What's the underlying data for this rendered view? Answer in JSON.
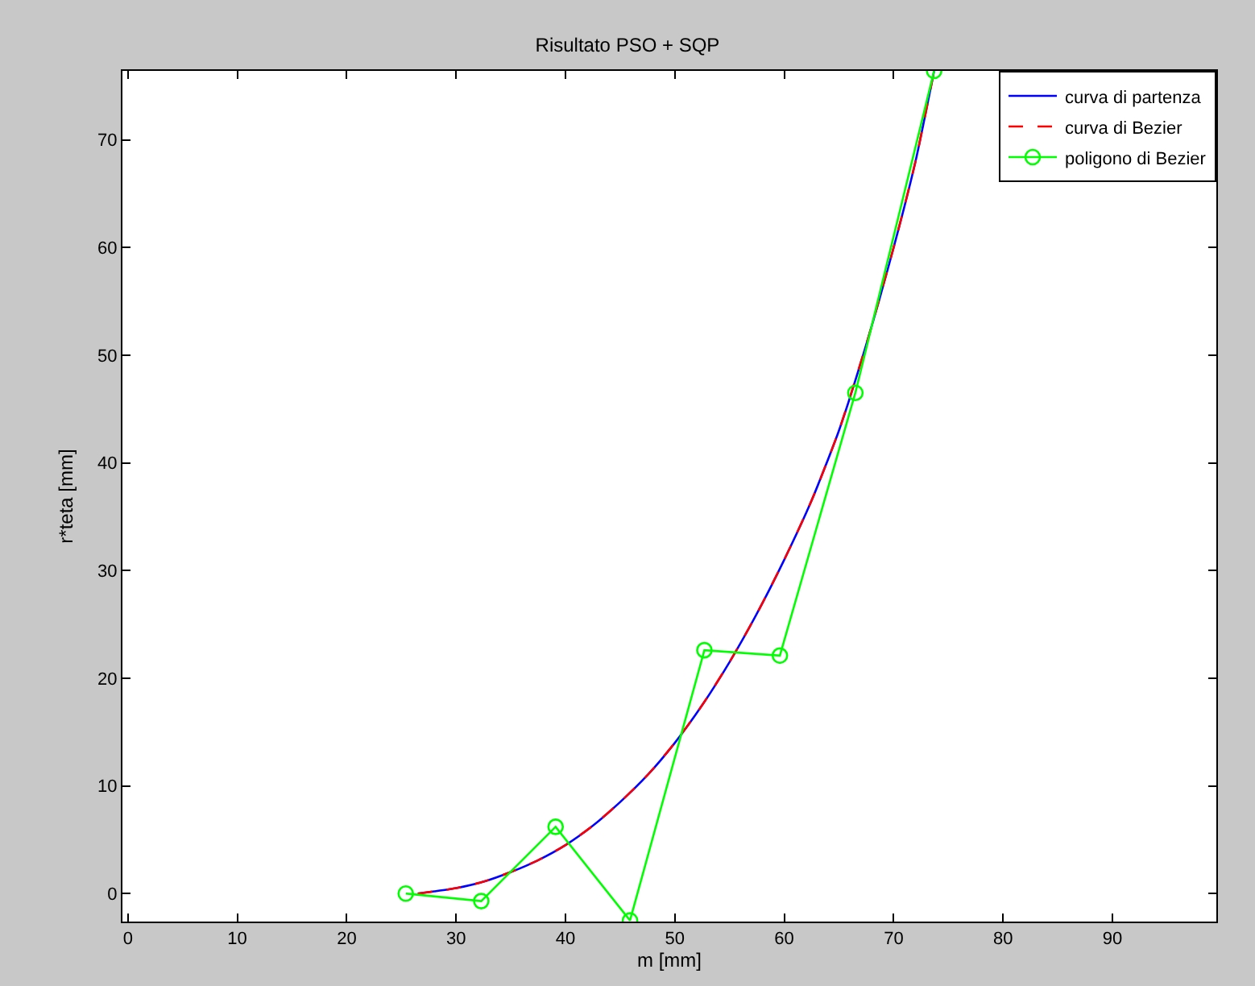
{
  "chart_data": {
    "type": "line",
    "title": "Risultato PSO + SQP",
    "xlabel": "m [mm]",
    "ylabel": "r*teta [mm]",
    "xlim": [
      -0.5,
      99.5
    ],
    "xticks": [
      0,
      10,
      20,
      30,
      40,
      50,
      60,
      70,
      80,
      90
    ],
    "ylim": [
      -2.6,
      76.4
    ],
    "yticks": [
      0,
      10,
      20,
      30,
      40,
      50,
      60,
      70
    ],
    "legend": "top right",
    "series": [
      {
        "name": "curva di partenza",
        "color": "#0000ff",
        "marker": "none",
        "x": [
          26.5,
          28,
          30,
          32.5,
          35,
          37.5,
          40,
          42.5,
          45,
          47.5,
          50,
          52.5,
          55,
          57.5,
          60,
          62.5,
          65,
          67.5,
          70,
          72,
          73.7
        ],
        "values": [
          0,
          0.2,
          0.5,
          1.1,
          2,
          3.1,
          4.5,
          6.3,
          8.5,
          11,
          14,
          17.5,
          21.5,
          26,
          31,
          36.5,
          43,
          51,
          60,
          68,
          76.4
        ]
      },
      {
        "name": "curva di Bezier",
        "color": "#ff0000",
        "marker": "none",
        "line_style": "dashed",
        "x": [
          26.5,
          28,
          30,
          32.5,
          35,
          37.5,
          40,
          42.5,
          45,
          47.5,
          50,
          52.5,
          55,
          57.5,
          60,
          62.5,
          65,
          67.5,
          70,
          72,
          73.7
        ],
        "values": [
          0,
          0.2,
          0.5,
          1.1,
          2,
          3.1,
          4.5,
          6.3,
          8.5,
          11,
          14,
          17.5,
          21.5,
          26,
          31,
          36.5,
          43,
          51,
          60,
          68,
          76.4
        ]
      },
      {
        "name": "poligono di Bezier",
        "color": "#00ff00",
        "marker": "circle",
        "x": [
          25.4,
          32.3,
          39.1,
          45.9,
          52.7,
          59.6,
          66.5,
          73.7
        ],
        "values": [
          0,
          -0.7,
          6.2,
          -2.5,
          22.6,
          22.1,
          46.5,
          76.4
        ]
      }
    ]
  }
}
